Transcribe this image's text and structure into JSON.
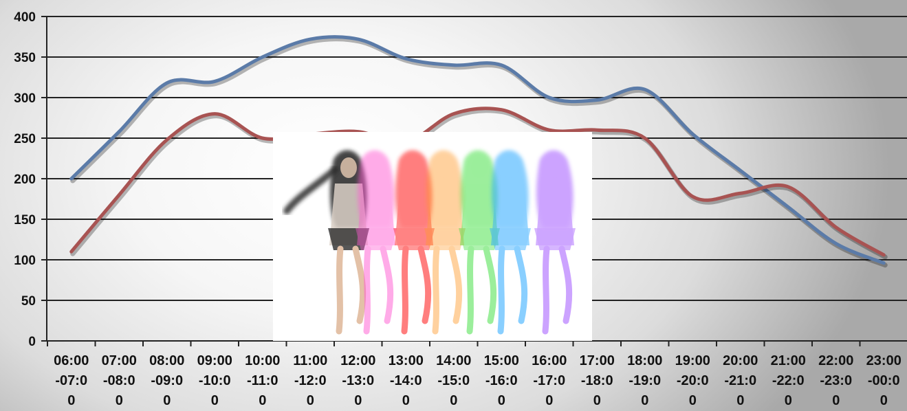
{
  "chart_data": {
    "type": "line",
    "title": "",
    "xlabel": "",
    "ylabel": "",
    "ylim": [
      0,
      400
    ],
    "yticks": [
      0,
      50,
      100,
      150,
      200,
      250,
      300,
      350,
      400
    ],
    "grid": true,
    "legend": "none",
    "categories": [
      [
        "06:00",
        "-07:0",
        "0"
      ],
      [
        "07:00",
        "-08:0",
        "0"
      ],
      [
        "08:00",
        "-09:0",
        "0"
      ],
      [
        "09:00",
        "-10:0",
        "0"
      ],
      [
        "10:00",
        "-11:0",
        "0"
      ],
      [
        "11:00",
        "-12:0",
        "0"
      ],
      [
        "12:00",
        "-13:0",
        "0"
      ],
      [
        "13:00",
        "-14:0",
        "0"
      ],
      [
        "14:00",
        "-15:0",
        "0"
      ],
      [
        "15:00",
        "-16:0",
        "0"
      ],
      [
        "16:00",
        "-17:0",
        "0"
      ],
      [
        "17:00",
        "-18:0",
        "0"
      ],
      [
        "18:00",
        "-19:0",
        "0"
      ],
      [
        "19:00",
        "-20:0",
        "0"
      ],
      [
        "20:00",
        "-21:0",
        "0"
      ],
      [
        "21:00",
        "-22:0",
        "0"
      ],
      [
        "22:00",
        "-23:0",
        "0"
      ],
      [
        "23:00",
        "-00:0",
        "0"
      ]
    ],
    "series": [
      {
        "color": "#5b7ba8",
        "values": [
          200,
          258,
          318,
          320,
          350,
          372,
          372,
          348,
          340,
          340,
          300,
          297,
          310,
          255,
          210,
          165,
          120,
          96
        ]
      },
      {
        "color": "#a85352",
        "values": [
          110,
          180,
          248,
          280,
          250,
          255,
          258,
          245,
          280,
          285,
          260,
          260,
          250,
          178,
          182,
          190,
          140,
          106
        ]
      }
    ]
  },
  "photo": {
    "subject": "rainbow-dancers-image"
  }
}
